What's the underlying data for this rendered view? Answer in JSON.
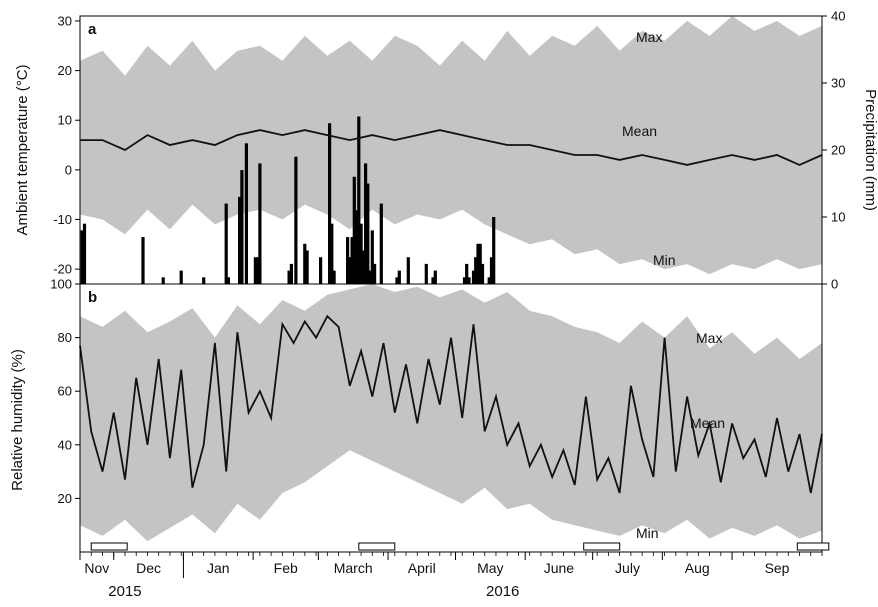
{
  "chart_data": [
    {
      "panel": "a",
      "type": "area",
      "ylabel": "Ambient temperature (°C)",
      "y2label": "Precipitation (mm)",
      "ylim": [
        -23,
        31
      ],
      "y2lim": [
        0,
        40
      ],
      "yticks": [
        30,
        20,
        10,
        0,
        -10,
        -20
      ],
      "y2ticks": [
        40,
        30,
        20,
        10,
        0
      ],
      "annotations": [
        "Max",
        "Mean",
        "Min"
      ],
      "xrange_days": [
        0,
        330
      ],
      "series": [
        {
          "key": "max",
          "label": "Max",
          "role": "upper band",
          "color": "#c4c4c6",
          "x": [
            0,
            10,
            20,
            30,
            40,
            50,
            60,
            70,
            80,
            90,
            100,
            110,
            120,
            130,
            140,
            150,
            160,
            170,
            180,
            190,
            200,
            210,
            220,
            230,
            240,
            250,
            260,
            270,
            280,
            290,
            300,
            310,
            320,
            330
          ],
          "values": [
            22,
            24,
            19,
            25,
            21,
            26,
            20,
            24,
            25,
            22,
            27,
            23,
            26,
            22,
            27,
            25,
            21,
            26,
            22,
            28,
            23,
            27,
            25,
            29,
            24,
            28,
            26,
            30,
            27,
            31,
            28,
            30,
            27,
            29
          ]
        },
        {
          "key": "mean",
          "label": "Mean",
          "role": "line",
          "color": "#111111",
          "x": [
            0,
            10,
            20,
            30,
            40,
            50,
            60,
            70,
            80,
            90,
            100,
            110,
            120,
            130,
            140,
            150,
            160,
            170,
            180,
            190,
            200,
            210,
            220,
            230,
            240,
            250,
            260,
            270,
            280,
            290,
            300,
            310,
            320,
            330
          ],
          "values": [
            6,
            6,
            4,
            7,
            5,
            6,
            5,
            7,
            8,
            7,
            8,
            7,
            6,
            7,
            6,
            7,
            8,
            7,
            6,
            5,
            5,
            4,
            3,
            3,
            2,
            3,
            2,
            1,
            2,
            3,
            2,
            3,
            1,
            3
          ]
        },
        {
          "key": "min",
          "label": "Min",
          "role": "lower band",
          "color": "#c4c4c6",
          "x": [
            0,
            10,
            20,
            30,
            40,
            50,
            60,
            70,
            80,
            90,
            100,
            110,
            120,
            130,
            140,
            150,
            160,
            170,
            180,
            190,
            200,
            210,
            220,
            230,
            240,
            250,
            260,
            270,
            280,
            290,
            300,
            310,
            320,
            330
          ],
          "values": [
            -9,
            -10,
            -13,
            -8,
            -12,
            -7,
            -11,
            -9,
            -8,
            -10,
            -7,
            -9,
            -12,
            -8,
            -11,
            -9,
            -10,
            -8,
            -11,
            -13,
            -15,
            -14,
            -17,
            -16,
            -19,
            -18,
            -20,
            -19,
            -21,
            -19,
            -20,
            -18,
            -20,
            -19
          ]
        },
        {
          "key": "precip",
          "label": "Precipitation (mm)",
          "role": "bars",
          "axis": "right",
          "color": "#000000",
          "x": [
            1,
            2,
            28,
            37,
            45,
            55,
            65,
            66,
            71,
            72,
            74,
            78,
            79,
            80,
            93,
            94,
            96,
            100,
            101,
            107,
            111,
            112,
            113,
            119,
            120,
            121,
            122,
            123,
            124,
            125,
            126,
            127,
            128,
            129,
            130,
            131,
            134,
            141,
            142,
            146,
            154,
            157,
            158,
            171,
            172,
            173,
            175,
            176,
            177,
            178,
            179,
            182,
            183,
            184
          ],
          "values": [
            8,
            9,
            7,
            1,
            2,
            1,
            12,
            1,
            13,
            17,
            21,
            4,
            4,
            18,
            2,
            3,
            19,
            6,
            5,
            4,
            24,
            9,
            2,
            7,
            4,
            7,
            16,
            11,
            25,
            9,
            5,
            18,
            15,
            2,
            8,
            3,
            12,
            1,
            2,
            4,
            3,
            1,
            2,
            1,
            3,
            1,
            2,
            4,
            6,
            6,
            3,
            1,
            4,
            10
          ]
        }
      ]
    },
    {
      "panel": "b",
      "type": "area",
      "ylabel": "Relative humidity (%)",
      "ylim": [
        0,
        100
      ],
      "yticks": [
        100,
        80,
        60,
        40,
        20
      ],
      "annotations": [
        "Max",
        "Mean",
        "Min"
      ],
      "xrange_days": [
        0,
        330
      ],
      "series": [
        {
          "key": "max",
          "label": "Max",
          "role": "upper band",
          "color": "#c4c4c6",
          "x": [
            0,
            10,
            20,
            30,
            40,
            50,
            60,
            70,
            80,
            90,
            100,
            110,
            120,
            130,
            140,
            150,
            160,
            170,
            180,
            190,
            200,
            210,
            220,
            230,
            240,
            250,
            260,
            270,
            280,
            290,
            300,
            310,
            320,
            330
          ],
          "values": [
            88,
            84,
            90,
            82,
            86,
            91,
            80,
            92,
            85,
            94,
            90,
            96,
            98,
            100,
            97,
            99,
            95,
            98,
            93,
            97,
            90,
            88,
            84,
            82,
            78,
            86,
            80,
            88,
            76,
            82,
            74,
            80,
            72,
            78
          ]
        },
        {
          "key": "mean",
          "label": "Mean",
          "role": "line",
          "color": "#111111",
          "x": [
            0,
            5,
            10,
            15,
            20,
            25,
            30,
            35,
            40,
            45,
            50,
            55,
            60,
            65,
            70,
            75,
            80,
            85,
            90,
            95,
            100,
            105,
            110,
            115,
            120,
            125,
            130,
            135,
            140,
            145,
            150,
            155,
            160,
            165,
            170,
            175,
            180,
            185,
            190,
            195,
            200,
            205,
            210,
            215,
            220,
            225,
            230,
            235,
            240,
            245,
            250,
            255,
            260,
            265,
            270,
            275,
            280,
            285,
            290,
            295,
            300,
            305,
            310,
            315,
            320,
            325,
            330
          ],
          "values": [
            77,
            45,
            30,
            52,
            27,
            65,
            40,
            72,
            35,
            68,
            24,
            40,
            78,
            30,
            82,
            52,
            60,
            50,
            85,
            78,
            86,
            80,
            88,
            84,
            62,
            75,
            58,
            78,
            52,
            70,
            48,
            72,
            55,
            80,
            50,
            85,
            45,
            58,
            40,
            48,
            32,
            40,
            28,
            38,
            25,
            58,
            27,
            35,
            22,
            62,
            42,
            28,
            80,
            30,
            58,
            36,
            48,
            26,
            48,
            35,
            42,
            28,
            50,
            30,
            44,
            22,
            44
          ]
        },
        {
          "key": "min",
          "label": "Min",
          "role": "lower band",
          "color": "#c4c4c6",
          "x": [
            0,
            10,
            20,
            30,
            40,
            50,
            60,
            70,
            80,
            90,
            100,
            110,
            120,
            130,
            140,
            150,
            160,
            170,
            180,
            190,
            200,
            210,
            220,
            230,
            240,
            250,
            260,
            270,
            280,
            290,
            300,
            310,
            320,
            330
          ],
          "values": [
            10,
            6,
            12,
            4,
            9,
            14,
            7,
            18,
            12,
            22,
            26,
            32,
            38,
            34,
            30,
            26,
            22,
            18,
            24,
            16,
            18,
            12,
            10,
            8,
            6,
            10,
            7,
            12,
            5,
            9,
            6,
            10,
            5,
            8
          ]
        }
      ]
    }
  ],
  "xaxis": {
    "months": [
      {
        "label": "Nov",
        "start": 0,
        "end": 15
      },
      {
        "label": "Dec",
        "start": 15,
        "end": 46
      },
      {
        "label": "Jan",
        "start": 46,
        "end": 77
      },
      {
        "label": "Feb",
        "start": 77,
        "end": 106
      },
      {
        "label": "March",
        "start": 106,
        "end": 137
      },
      {
        "label": "April",
        "start": 137,
        "end": 167
      },
      {
        "label": "May",
        "start": 167,
        "end": 198
      },
      {
        "label": "June",
        "start": 198,
        "end": 228
      },
      {
        "label": "July",
        "start": 228,
        "end": 259
      },
      {
        "label": "Aug",
        "start": 259,
        "end": 290
      },
      {
        "label": "Sep",
        "start": 290,
        "end": 330
      }
    ],
    "years": [
      {
        "label": "2015",
        "center": 20
      },
      {
        "label": "2016",
        "center": 188
      }
    ],
    "year_divider_day": 46,
    "sampling_periods": [
      [
        5,
        21
      ],
      [
        124,
        140
      ],
      [
        224,
        240
      ],
      [
        319,
        333
      ]
    ]
  }
}
